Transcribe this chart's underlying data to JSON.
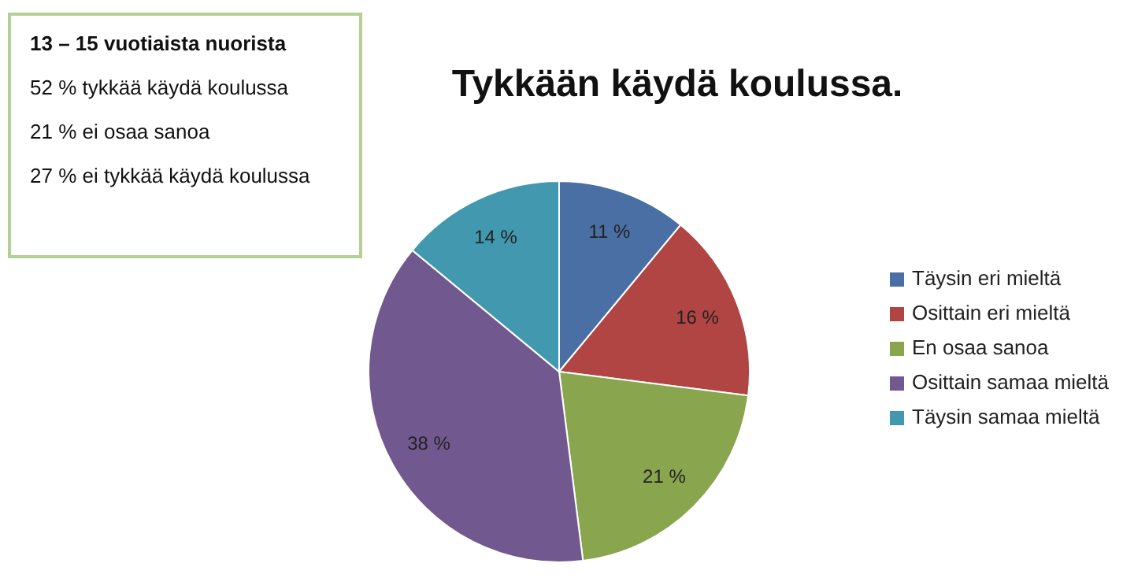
{
  "chart_data": {
    "type": "pie",
    "title": "Tykkään käydä koulussa.",
    "categories": [
      "Täysin eri mieltä",
      "Osittain eri mieltä",
      "En osaa sanoa",
      "Osittain samaa mieltä",
      "Täysin samaa mieltä"
    ],
    "values": [
      11,
      16,
      21,
      38,
      14
    ],
    "value_labels": [
      "11 %",
      "16 %",
      "21 %",
      "38 %",
      "14 %"
    ],
    "colors": [
      "#4a6fa5",
      "#b04543",
      "#89a54e",
      "#71588f",
      "#4198af"
    ],
    "legend": "right",
    "annotations": [
      "13 – 15 vuotiaista nuorista",
      "52 % tykkää käydä koulussa",
      "21 % ei osaa sanoa",
      "27 % ei tykkää käydä koulussa"
    ]
  }
}
